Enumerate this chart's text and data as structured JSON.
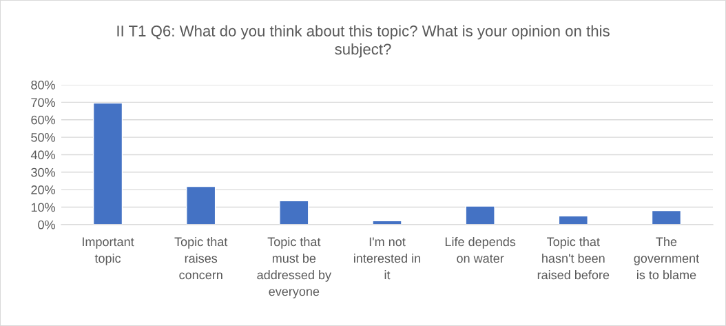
{
  "chart_data": {
    "type": "bar",
    "title": "II T1 Q6: What do you think about this topic? What is your opinion on this subject?",
    "categories": [
      "Important topic",
      "Topic that raises concern",
      "Topic that must be addressed by everyone",
      "I'm not interested in it",
      "Life depends on water",
      "Topic that hasn't been raised before",
      "The government is to blame"
    ],
    "values": [
      69.5,
      21.8,
      13.6,
      2.2,
      10.6,
      5.0,
      8.0
    ],
    "color": "#4472c4",
    "ylim": [
      0,
      80
    ],
    "yticks": [
      {
        "value": 0,
        "label": "0%"
      },
      {
        "value": 10,
        "label": "10%"
      },
      {
        "value": 20,
        "label": "20%"
      },
      {
        "value": 30,
        "label": "30%"
      },
      {
        "value": 40,
        "label": "40%"
      },
      {
        "value": 50,
        "label": "50%"
      },
      {
        "value": 60,
        "label": "60%"
      },
      {
        "value": 70,
        "label": "70%"
      },
      {
        "value": 80,
        "label": "80%"
      }
    ],
    "grid": "y"
  }
}
